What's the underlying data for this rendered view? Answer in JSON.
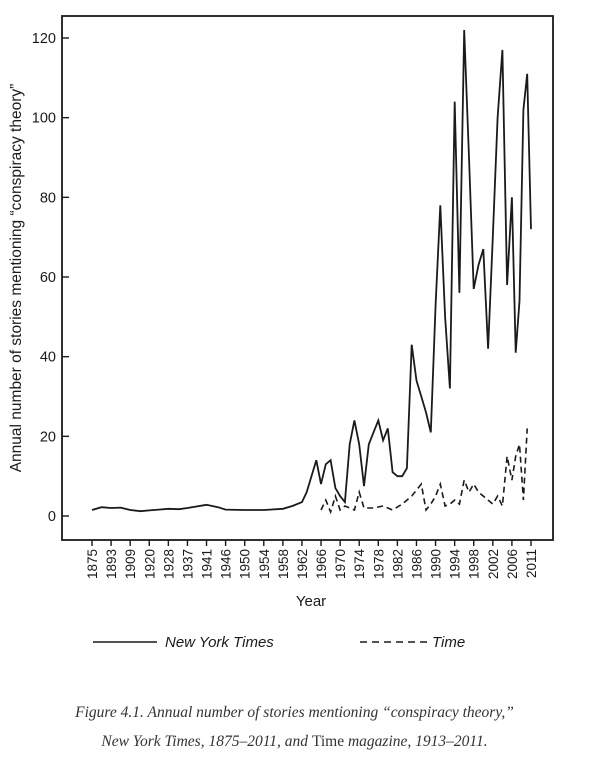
{
  "chart_data": {
    "type": "line",
    "ylabel": "Annual number of stories mentioning “conspiracy theory”",
    "xlabel": "Year",
    "ylim": [
      0,
      120
    ],
    "xlim": [
      1875,
      2011
    ],
    "yticks": [
      0,
      20,
      40,
      60,
      80,
      100,
      120
    ],
    "xticks": [
      "1875",
      "1893",
      "1909",
      "1920",
      "1928",
      "1937",
      "1941",
      "1946",
      "1950",
      "1954",
      "1958",
      "1962",
      "1966",
      "1970",
      "1974",
      "1978",
      "1982",
      "1986",
      "1990",
      "1994",
      "1998",
      "2002",
      "2006",
      "2011"
    ],
    "grid": false,
    "legend_position": "bottom",
    "series": [
      {
        "name": "New York Times",
        "style": "solid",
        "points": [
          [
            "1875",
            1.5
          ],
          [
            "1884",
            2.2
          ],
          [
            "1893",
            2.0
          ],
          [
            "1901",
            2.1
          ],
          [
            "1909",
            1.5
          ],
          [
            "1915",
            1.2
          ],
          [
            "1920",
            1.4
          ],
          [
            "1924",
            1.6
          ],
          [
            "1928",
            1.8
          ],
          [
            "1933",
            1.7
          ],
          [
            "1937",
            2.0
          ],
          [
            "1941",
            2.8
          ],
          [
            "1944",
            2.2
          ],
          [
            "1946",
            1.6
          ],
          [
            "1950",
            1.5
          ],
          [
            "1954",
            1.5
          ],
          [
            "1958",
            1.8
          ],
          [
            "1960",
            2.5
          ],
          [
            "1962",
            3.5
          ],
          [
            "1963",
            6
          ],
          [
            "1965",
            14
          ],
          [
            "1966",
            8
          ],
          [
            "1967",
            13
          ],
          [
            "1968",
            14
          ],
          [
            "1969",
            7
          ],
          [
            "1970",
            5
          ],
          [
            "1971",
            3.5
          ],
          [
            "1972",
            18
          ],
          [
            "1973",
            24
          ],
          [
            "1974",
            18
          ],
          [
            "1975",
            7.5
          ],
          [
            "1976",
            18
          ],
          [
            "1977",
            21
          ],
          [
            "1978",
            24
          ],
          [
            "1979",
            19
          ],
          [
            "1980",
            22
          ],
          [
            "1981",
            11
          ],
          [
            "1982",
            10
          ],
          [
            "1983",
            10
          ],
          [
            "1984",
            12
          ],
          [
            "1985",
            43
          ],
          [
            "1986",
            34
          ],
          [
            "1987",
            30
          ],
          [
            "1988",
            26
          ],
          [
            "1989",
            21
          ],
          [
            "1990",
            53
          ],
          [
            "1991",
            78
          ],
          [
            "1992",
            50
          ],
          [
            "1993",
            32
          ],
          [
            "1994",
            104
          ],
          [
            "1995",
            56
          ],
          [
            "1996",
            122
          ],
          [
            "1997",
            90
          ],
          [
            "1998",
            57
          ],
          [
            "1999",
            63
          ],
          [
            "2000",
            67
          ],
          [
            "2001",
            42
          ],
          [
            "2002",
            70
          ],
          [
            "2003",
            100
          ],
          [
            "2004",
            117
          ],
          [
            "2005",
            58
          ],
          [
            "2006",
            80
          ],
          [
            "2007",
            41
          ],
          [
            "2008",
            54
          ],
          [
            "2009",
            102
          ],
          [
            "2010",
            111
          ],
          [
            "2011",
            72
          ]
        ]
      },
      {
        "name": "Time",
        "style": "dashed",
        "points": [
          [
            "1966",
            1.5
          ],
          [
            "1967",
            4
          ],
          [
            "1968",
            1
          ],
          [
            "1969",
            5
          ],
          [
            "1970",
            1.5
          ],
          [
            "1971",
            2.5
          ],
          [
            "1973",
            1.5
          ],
          [
            "1974",
            6
          ],
          [
            "1975",
            2
          ],
          [
            "1977",
            2
          ],
          [
            "1979",
            2.5
          ],
          [
            "1981",
            1.5
          ],
          [
            "1983",
            3
          ],
          [
            "1985",
            5
          ],
          [
            "1987",
            8
          ],
          [
            "1988",
            1.5
          ],
          [
            "1989",
            3
          ],
          [
            "1990",
            5
          ],
          [
            "1991",
            8
          ],
          [
            "1992",
            2.5
          ],
          [
            "1993",
            3
          ],
          [
            "1994",
            4
          ],
          [
            "1995",
            3
          ],
          [
            "1996",
            9
          ],
          [
            "1997",
            6
          ],
          [
            "1998",
            8
          ],
          [
            "1999",
            6
          ],
          [
            "2000",
            5
          ],
          [
            "2001",
            4
          ],
          [
            "2002",
            3
          ],
          [
            "2003",
            5
          ],
          [
            "2004",
            2.5
          ],
          [
            "2005",
            15
          ],
          [
            "2006",
            9
          ],
          [
            "2007",
            15
          ],
          [
            "2008",
            18
          ],
          [
            "2009",
            4
          ],
          [
            "2010",
            22
          ]
        ]
      }
    ]
  },
  "legend": {
    "nyt_label": "New York Times",
    "time_label": "Time"
  },
  "caption": {
    "line1": "Figure 4.1. Annual number of stories mentioning “conspiracy theory,”",
    "line2_a": "New York Times",
    "line2_b": ", 1875–2011, and ",
    "line2_c": "Time",
    "line2_d": " magazine, 1913–2011."
  }
}
